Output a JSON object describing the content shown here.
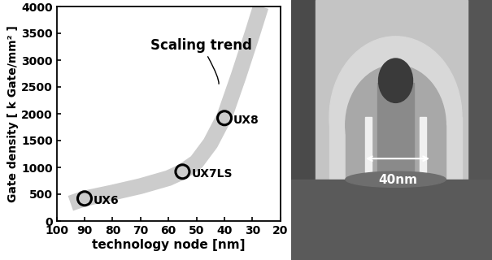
{
  "chart_data": {
    "type": "scatter",
    "x_label": "technology node [nm]",
    "y_label": "Gate density [ k Gate/mm² ]",
    "xlim": [
      100,
      20
    ],
    "xticks": [
      100,
      90,
      80,
      70,
      60,
      50,
      40,
      30,
      20
    ],
    "ylim": [
      0,
      4000
    ],
    "yticks": [
      0,
      500,
      1000,
      1500,
      2000,
      2500,
      3000,
      3500,
      4000
    ],
    "grid": false,
    "series": [
      {
        "name": "Scaling trend",
        "type": "line",
        "color": "#cccccc",
        "line_style": "solid",
        "x": [
          95,
          90,
          80,
          70,
          60,
          55,
          50,
          45,
          40,
          35,
          30,
          27
        ],
        "values": [
          330,
          420,
          530,
          650,
          800,
          920,
          1100,
          1450,
          1950,
          2700,
          3500,
          4000
        ]
      },
      {
        "type": "scatter",
        "marker": "o",
        "color": "#000000",
        "x": [
          90,
          55,
          40
        ],
        "values": [
          420,
          920,
          1920
        ],
        "labels": [
          "UX6",
          "UX7LS",
          "UX8"
        ]
      }
    ]
  },
  "image": {
    "scale_label": "40nm"
  }
}
